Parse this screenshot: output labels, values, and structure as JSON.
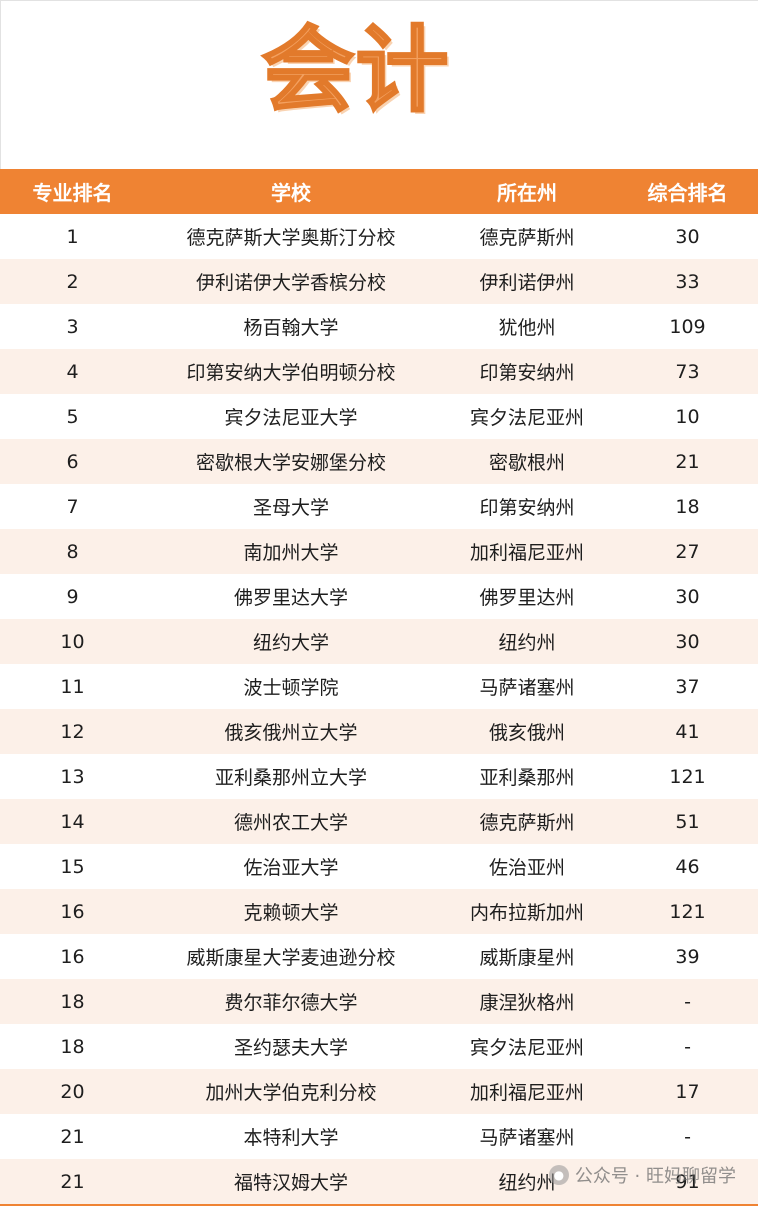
{
  "title": "会计",
  "table": {
    "headers": [
      "专业排名",
      "学校",
      "所在州",
      "综合排名"
    ],
    "rows": [
      [
        "1",
        "德克萨斯大学奥斯汀分校",
        "德克萨斯州",
        "30"
      ],
      [
        "2",
        "伊利诺伊大学香槟分校",
        "伊利诺伊州",
        "33"
      ],
      [
        "3",
        "杨百翰大学",
        "犹他州",
        "109"
      ],
      [
        "4",
        "印第安纳大学伯明顿分校",
        "印第安纳州",
        "73"
      ],
      [
        "5",
        "宾夕法尼亚大学",
        "宾夕法尼亚州",
        "10"
      ],
      [
        "6",
        "密歇根大学安娜堡分校",
        "密歇根州",
        "21"
      ],
      [
        "7",
        "圣母大学",
        "印第安纳州",
        "18"
      ],
      [
        "8",
        "南加州大学",
        "加利福尼亚州",
        "27"
      ],
      [
        "9",
        "佛罗里达大学",
        "佛罗里达州",
        "30"
      ],
      [
        "10",
        "纽约大学",
        "纽约州",
        "30"
      ],
      [
        "11",
        "波士顿学院",
        "马萨诸塞州",
        "37"
      ],
      [
        "12",
        "俄亥俄州立大学",
        "俄亥俄州",
        "41"
      ],
      [
        "13",
        "亚利桑那州立大学",
        "亚利桑那州",
        "121"
      ],
      [
        "14",
        "德州农工大学",
        "德克萨斯州",
        "51"
      ],
      [
        "15",
        "佐治亚大学",
        "佐治亚州",
        "46"
      ],
      [
        "16",
        "克赖顿大学",
        "内布拉斯加州",
        "121"
      ],
      [
        "16",
        "威斯康星大学麦迪逊分校",
        "威斯康星州",
        "39"
      ],
      [
        "18",
        "费尔菲尔德大学",
        "康涅狄格州",
        "-"
      ],
      [
        "18",
        "圣约瑟夫大学",
        "宾夕法尼亚州",
        "-"
      ],
      [
        "20",
        "加州大学伯克利分校",
        "加利福尼亚州",
        "17"
      ],
      [
        "21",
        "本特利大学",
        "马萨诸塞州",
        "-"
      ],
      [
        "21",
        "福特汉姆大学",
        "纽约州",
        "91"
      ]
    ]
  },
  "watermark": {
    "text": "公众号 · 旺妈聊留学",
    "icon": "wechat-icon"
  }
}
